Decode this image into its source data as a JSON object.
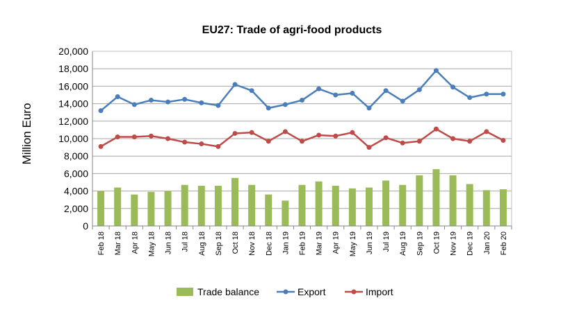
{
  "chart_data": {
    "type": "bar",
    "title": "EU27: Trade of agri-food products",
    "xlabel": "",
    "ylabel": "Million Euro",
    "ylim": [
      0,
      20000
    ],
    "yticks": [
      0,
      2000,
      4000,
      6000,
      8000,
      10000,
      12000,
      14000,
      16000,
      18000,
      20000
    ],
    "ytick_labels": [
      "0",
      "2,000",
      "4,000",
      "6,000",
      "8,000",
      "10,000",
      "12,000",
      "14,000",
      "16,000",
      "18,000",
      "20,000"
    ],
    "grid": true,
    "legend_position": "bottom",
    "categories": [
      "Feb 18",
      "Mar 18",
      "Apr 18",
      "May 18",
      "Jun 18",
      "Jul 18",
      "Aug 18",
      "Sep 18",
      "Oct 18",
      "Nov 18",
      "Dec 18",
      "Jan 19",
      "Feb 19",
      "Mar 19",
      "Apr 19",
      "May 19",
      "Jun 19",
      "Jul 19",
      "Aug 19",
      "Sep 19",
      "Oct 19",
      "Nov 19",
      "Dec 19",
      "Jan 20",
      "Feb 20"
    ],
    "series": [
      {
        "name": "Trade balance",
        "kind": "bar",
        "color": "#9bbb59",
        "values": [
          4000,
          4400,
          3600,
          3900,
          4000,
          4700,
          4600,
          4600,
          5500,
          4700,
          3600,
          2900,
          4700,
          5100,
          4600,
          4300,
          4400,
          5200,
          4700,
          5800,
          6500,
          5800,
          4800,
          4100,
          4200
        ]
      },
      {
        "name": "Export",
        "kind": "line",
        "color": "#4a7ebb",
        "values": [
          13200,
          14800,
          13900,
          14400,
          14200,
          14500,
          14100,
          13800,
          16200,
          15500,
          13500,
          13900,
          14400,
          15700,
          15000,
          15200,
          13500,
          15500,
          14300,
          15600,
          17800,
          15900,
          14700,
          15100,
          15100
        ]
      },
      {
        "name": "Import",
        "kind": "line",
        "color": "#be4b48",
        "values": [
          9100,
          10200,
          10200,
          10300,
          10000,
          9600,
          9400,
          9100,
          10600,
          10700,
          9700,
          10800,
          9700,
          10400,
          10300,
          10700,
          9000,
          10100,
          9500,
          9700,
          11100,
          10000,
          9700,
          10800,
          9800
        ]
      }
    ]
  }
}
